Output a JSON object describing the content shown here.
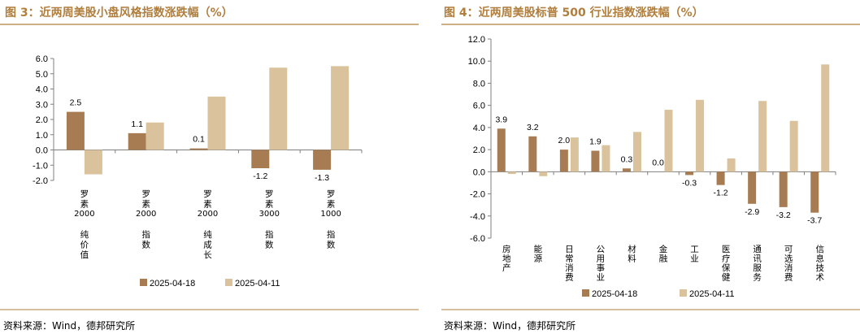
{
  "colors": {
    "title": "#b07e3d",
    "series_a": "#a87c52",
    "series_b": "#d9c29c",
    "rule": "#b07e3d"
  },
  "chart_data": [
    {
      "type": "bar",
      "title": "图 3：近两周美股小盘风格指数涨跌幅（%）",
      "categories": [
        "罗素2000纯价值",
        "罗素2000指数",
        "罗素2000纯成长",
        "罗素3000指数",
        "罗素1000指数"
      ],
      "series": [
        {
          "name": "2025-04-18",
          "values": [
            2.5,
            1.1,
            0.1,
            -1.2,
            -1.3
          ]
        },
        {
          "name": "2025-04-11",
          "values": [
            -1.6,
            1.8,
            3.5,
            5.4,
            5.5
          ]
        }
      ],
      "data_labels": [
        "2.5",
        "1.1",
        "0.1",
        "-1.2",
        "-1.3"
      ],
      "yticks": [
        "6.0",
        "5.0",
        "4.0",
        "3.0",
        "2.0",
        "1.0",
        "0.0",
        "-1.0",
        "-2.0"
      ],
      "ylim": [
        -2,
        6
      ],
      "legend": "bottom",
      "source": "资料来源：Wind，德邦研究所"
    },
    {
      "type": "bar",
      "title": "图 4：近两周美股标普 500 行业指数涨跌幅（%）",
      "categories": [
        "房地产",
        "能源",
        "日常消费",
        "公用事业",
        "材料",
        "金融",
        "工业",
        "医疗保健",
        "通讯服务",
        "可选消费",
        "信息技术"
      ],
      "series": [
        {
          "name": "2025-04-18",
          "values": [
            3.9,
            3.2,
            2.0,
            1.9,
            0.3,
            0.0,
            -0.3,
            -1.2,
            -2.9,
            -3.2,
            -3.7
          ]
        },
        {
          "name": "2025-04-11",
          "values": [
            -0.2,
            -0.4,
            3.1,
            2.4,
            3.6,
            5.6,
            6.5,
            1.2,
            6.4,
            4.6,
            9.7
          ]
        }
      ],
      "data_labels": [
        "3.9",
        "3.2",
        "2.0",
        "1.9",
        "0.3",
        "0.0",
        "-0.3",
        "-1.2",
        "-2.9",
        "-3.2",
        "-3.7"
      ],
      "yticks": [
        "12.0",
        "10.0",
        "8.0",
        "6.0",
        "4.0",
        "2.0",
        "0.0",
        "-2.0",
        "-4.0",
        "-6.0"
      ],
      "ylim": [
        -6,
        12
      ],
      "legend": "bottom",
      "source": "资料来源：Wind，德邦研究所"
    }
  ]
}
